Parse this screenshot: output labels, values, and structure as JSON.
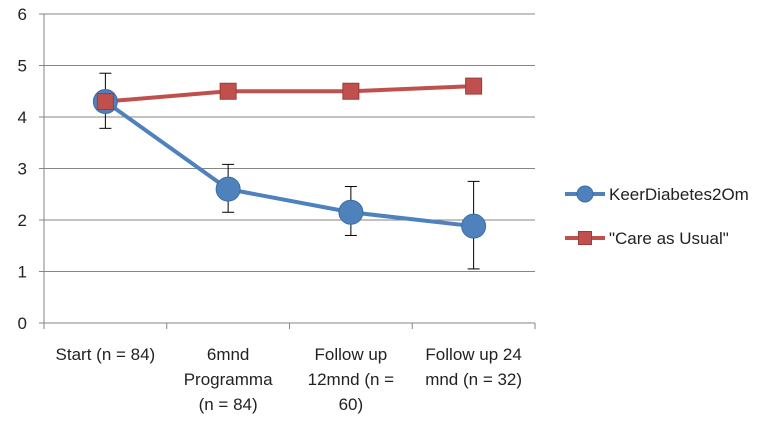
{
  "chart_data": {
    "type": "line",
    "categories": [
      [
        "Start (n = 84)"
      ],
      [
        "6mnd",
        "Programma",
        "(n = 84)"
      ],
      [
        "Follow up",
        "12mnd (n =",
        "60)"
      ],
      [
        "Follow up 24",
        "mnd (n = 32)"
      ]
    ],
    "ylim": [
      0,
      6
    ],
    "yticks": [
      0,
      1,
      2,
      3,
      4,
      5,
      6
    ],
    "grid": true,
    "legend_position": "right",
    "series": [
      {
        "name": "KeerDiabetes2Om",
        "color": "#4F81BD",
        "marker": "circle",
        "values": [
          4.3,
          2.6,
          2.15,
          1.88
        ],
        "error_low": [
          3.78,
          2.15,
          1.7,
          1.05
        ],
        "error_high": [
          4.85,
          3.08,
          2.65,
          2.75
        ]
      },
      {
        "name": "\"Care as Usual\"",
        "color": "#C0504D",
        "marker": "square",
        "values": [
          4.3,
          4.5,
          4.5,
          4.6
        ]
      }
    ]
  }
}
